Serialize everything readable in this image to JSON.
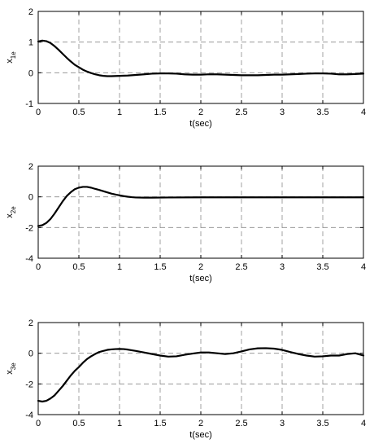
{
  "chart_data": [
    {
      "type": "line",
      "xlabel": "t(sec)",
      "ylabel": {
        "main": "x",
        "sub": "1e"
      },
      "xlim": [
        0,
        4
      ],
      "ylim": [
        -1,
        2
      ],
      "xticks": [
        0,
        0.5,
        1,
        1.5,
        2,
        2.5,
        3,
        3.5,
        4
      ],
      "xtick_labels": [
        "0",
        "0.5",
        "1",
        "1.5",
        "2",
        "2.5",
        "3",
        "3.5",
        "4"
      ],
      "yticks": [
        -1,
        0,
        1,
        2
      ],
      "ytick_labels": [
        "-1",
        "0",
        "1",
        "2"
      ],
      "grid": true,
      "color": "#000000",
      "series": [
        {
          "x": [
            0,
            0.05,
            0.1,
            0.15,
            0.2,
            0.25,
            0.3,
            0.35,
            0.4,
            0.45,
            0.5,
            0.55,
            0.6,
            0.65,
            0.7,
            0.75,
            0.8,
            0.85,
            0.9,
            1.0,
            1.1,
            1.2,
            1.3,
            1.4,
            1.5,
            1.6,
            1.7,
            1.8,
            1.9,
            2.0,
            2.1,
            2.2,
            2.3,
            2.4,
            2.5,
            2.6,
            2.7,
            2.8,
            2.9,
            3.0,
            3.1,
            3.2,
            3.3,
            3.4,
            3.5,
            3.6,
            3.7,
            3.8,
            3.9,
            4.0
          ],
          "y": [
            1.02,
            1.05,
            1.03,
            0.97,
            0.87,
            0.75,
            0.62,
            0.49,
            0.37,
            0.26,
            0.18,
            0.1,
            0.04,
            -0.01,
            -0.05,
            -0.08,
            -0.1,
            -0.11,
            -0.11,
            -0.1,
            -0.09,
            -0.07,
            -0.05,
            -0.03,
            -0.02,
            -0.02,
            -0.03,
            -0.05,
            -0.06,
            -0.06,
            -0.05,
            -0.05,
            -0.06,
            -0.07,
            -0.08,
            -0.08,
            -0.08,
            -0.07,
            -0.06,
            -0.06,
            -0.05,
            -0.04,
            -0.03,
            -0.02,
            -0.02,
            -0.03,
            -0.05,
            -0.05,
            -0.04,
            -0.03
          ]
        }
      ]
    },
    {
      "type": "line",
      "xlabel": "t(sec)",
      "ylabel": {
        "main": "x",
        "sub": "2e"
      },
      "xlim": [
        0,
        4
      ],
      "ylim": [
        -4,
        2
      ],
      "xticks": [
        0,
        0.5,
        1,
        1.5,
        2,
        2.5,
        3,
        3.5,
        4
      ],
      "xtick_labels": [
        "0",
        "0.5",
        "1",
        "1.5",
        "2",
        "2.5",
        "3",
        "3.5",
        "4"
      ],
      "yticks": [
        -4,
        -2,
        0,
        2
      ],
      "ytick_labels": [
        "-4",
        "-2",
        "0",
        "2"
      ],
      "grid": true,
      "color": "#000000",
      "series": [
        {
          "x": [
            0,
            0.05,
            0.1,
            0.15,
            0.2,
            0.25,
            0.3,
            0.35,
            0.4,
            0.45,
            0.5,
            0.55,
            0.6,
            0.65,
            0.7,
            0.75,
            0.8,
            0.85,
            0.9,
            0.95,
            1.0,
            1.05,
            1.1,
            1.15,
            1.2,
            1.3,
            1.4,
            1.6,
            2.0,
            2.5,
            3.0,
            3.5,
            4.0
          ],
          "y": [
            -1.9,
            -1.85,
            -1.7,
            -1.45,
            -1.1,
            -0.7,
            -0.3,
            0.05,
            0.3,
            0.5,
            0.6,
            0.65,
            0.65,
            0.6,
            0.52,
            0.45,
            0.37,
            0.29,
            0.21,
            0.15,
            0.1,
            0.05,
            0.01,
            -0.02,
            -0.04,
            -0.05,
            -0.05,
            -0.04,
            -0.03,
            -0.03,
            -0.03,
            -0.03,
            -0.03
          ]
        }
      ]
    },
    {
      "type": "line",
      "xlabel": "t(sec)",
      "ylabel": {
        "main": "x",
        "sub": "3e"
      },
      "xlim": [
        0,
        4
      ],
      "ylim": [
        -4,
        2
      ],
      "xticks": [
        0,
        0.5,
        1,
        1.5,
        2,
        2.5,
        3,
        3.5,
        4
      ],
      "xtick_labels": [
        "0",
        "0.5",
        "1",
        "1.5",
        "2",
        "2.5",
        "3",
        "3.5",
        "4"
      ],
      "yticks": [
        -4,
        -2,
        0,
        2
      ],
      "ytick_labels": [
        "-4",
        "-2",
        "0",
        "2"
      ],
      "grid": true,
      "color": "#000000",
      "series": [
        {
          "x": [
            0,
            0.05,
            0.1,
            0.15,
            0.2,
            0.25,
            0.3,
            0.35,
            0.4,
            0.45,
            0.5,
            0.55,
            0.6,
            0.65,
            0.7,
            0.75,
            0.8,
            0.85,
            0.9,
            0.95,
            1.0,
            1.05,
            1.1,
            1.2,
            1.3,
            1.4,
            1.5,
            1.6,
            1.7,
            1.8,
            1.9,
            2.0,
            2.1,
            2.2,
            2.3,
            2.4,
            2.5,
            2.6,
            2.7,
            2.8,
            2.9,
            3.0,
            3.1,
            3.2,
            3.3,
            3.4,
            3.5,
            3.6,
            3.7,
            3.8,
            3.9,
            4.0
          ],
          "y": [
            -3.1,
            -3.15,
            -3.1,
            -2.95,
            -2.75,
            -2.45,
            -2.15,
            -1.8,
            -1.45,
            -1.15,
            -0.9,
            -0.62,
            -0.38,
            -0.2,
            -0.05,
            0.08,
            0.15,
            0.22,
            0.25,
            0.27,
            0.28,
            0.27,
            0.24,
            0.15,
            0.05,
            -0.05,
            -0.15,
            -0.22,
            -0.2,
            -0.1,
            -0.02,
            0.05,
            0.05,
            0.0,
            -0.05,
            0.0,
            0.12,
            0.25,
            0.32,
            0.33,
            0.3,
            0.22,
            0.08,
            -0.05,
            -0.15,
            -0.22,
            -0.2,
            -0.15,
            -0.15,
            -0.05,
            0.0,
            -0.15
          ]
        }
      ]
    }
  ]
}
